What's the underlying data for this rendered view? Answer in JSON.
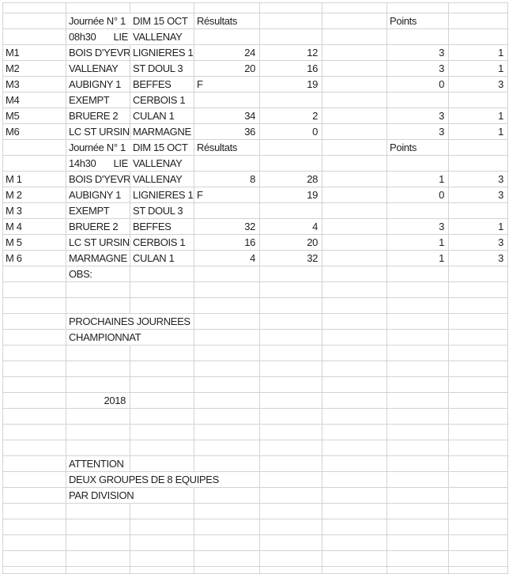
{
  "meta": {
    "app": "spreadsheet-results-sheet",
    "grid_color": "#d3d3d3",
    "text_color": "#1f1f1f",
    "background": "#ffffff"
  },
  "rows": [
    {
      "cells": []
    },
    {
      "cells": [
        {
          "c": 1,
          "v": "Journée N° 1",
          "s": 1
        },
        {
          "c": 2,
          "v": "DIM 15 OCT"
        },
        {
          "c": 3,
          "v": "Résultats"
        },
        {
          "c": 6,
          "v": "Points"
        }
      ]
    },
    {
      "cells": [
        {
          "c": 1,
          "v": "08h30",
          "v2": "LIE",
          "s": 1
        },
        {
          "c": 2,
          "v": "VALLENAY"
        }
      ]
    },
    {
      "cells": [
        {
          "c": 0,
          "v": "M1"
        },
        {
          "c": 1,
          "v": "BOIS D'YEVRI"
        },
        {
          "c": 2,
          "v": "LIGNIERES 1"
        },
        {
          "c": 3,
          "v": "24",
          "a": "r"
        },
        {
          "c": 4,
          "v": "12",
          "a": "r"
        },
        {
          "c": 6,
          "v": "3",
          "a": "r"
        },
        {
          "c": 7,
          "v": "1",
          "a": "r"
        }
      ]
    },
    {
      "cells": [
        {
          "c": 0,
          "v": "M2"
        },
        {
          "c": 1,
          "v": "VALLENAY"
        },
        {
          "c": 2,
          "v": "ST DOUL 3"
        },
        {
          "c": 3,
          "v": "20",
          "a": "r"
        },
        {
          "c": 4,
          "v": "16",
          "a": "r"
        },
        {
          "c": 6,
          "v": "3",
          "a": "r"
        },
        {
          "c": 7,
          "v": "1",
          "a": "r"
        }
      ]
    },
    {
      "cells": [
        {
          "c": 0,
          "v": "M3"
        },
        {
          "c": 1,
          "v": "AUBIGNY 1"
        },
        {
          "c": 2,
          "v": "BEFFES"
        },
        {
          "c": 3,
          "v": "F"
        },
        {
          "c": 4,
          "v": "19",
          "a": "r"
        },
        {
          "c": 6,
          "v": "0",
          "a": "r"
        },
        {
          "c": 7,
          "v": "3",
          "a": "r"
        }
      ]
    },
    {
      "cells": [
        {
          "c": 0,
          "v": "M4"
        },
        {
          "c": 1,
          "v": "EXEMPT"
        },
        {
          "c": 2,
          "v": "CERBOIS 1"
        }
      ]
    },
    {
      "cells": [
        {
          "c": 0,
          "v": "M5"
        },
        {
          "c": 1,
          "v": "BRUERE 2"
        },
        {
          "c": 2,
          "v": "CULAN 1"
        },
        {
          "c": 3,
          "v": "34",
          "a": "r"
        },
        {
          "c": 4,
          "v": "2",
          "a": "r"
        },
        {
          "c": 6,
          "v": "3",
          "a": "r"
        },
        {
          "c": 7,
          "v": "1",
          "a": "r"
        }
      ]
    },
    {
      "cells": [
        {
          "c": 0,
          "v": "M6"
        },
        {
          "c": 1,
          "v": "LC ST URSIN"
        },
        {
          "c": 2,
          "v": "MARMAGNE"
        },
        {
          "c": 3,
          "v": "36",
          "a": "r"
        },
        {
          "c": 4,
          "v": "0",
          "a": "r"
        },
        {
          "c": 6,
          "v": "3",
          "a": "r"
        },
        {
          "c": 7,
          "v": "1",
          "a": "r"
        }
      ]
    },
    {
      "cells": [
        {
          "c": 1,
          "v": "Journée N° 1",
          "s": 1
        },
        {
          "c": 2,
          "v": "DIM 15 OCT"
        },
        {
          "c": 3,
          "v": "Résultats"
        },
        {
          "c": 6,
          "v": "Points"
        }
      ]
    },
    {
      "cells": [
        {
          "c": 1,
          "v": "14h30",
          "v2": "LIE",
          "s": 1
        },
        {
          "c": 2,
          "v": "VALLENAY"
        }
      ]
    },
    {
      "cells": [
        {
          "c": 0,
          "v": "M 1"
        },
        {
          "c": 1,
          "v": "BOIS D'YEVRI"
        },
        {
          "c": 2,
          "v": "VALLENAY"
        },
        {
          "c": 3,
          "v": "8",
          "a": "r"
        },
        {
          "c": 4,
          "v": "28",
          "a": "r"
        },
        {
          "c": 6,
          "v": "1",
          "a": "r"
        },
        {
          "c": 7,
          "v": "3",
          "a": "r"
        }
      ]
    },
    {
      "cells": [
        {
          "c": 0,
          "v": "M 2"
        },
        {
          "c": 1,
          "v": "AUBIGNY 1"
        },
        {
          "c": 2,
          "v": "LIGNIERES 1"
        },
        {
          "c": 3,
          "v": "F"
        },
        {
          "c": 4,
          "v": "19",
          "a": "r"
        },
        {
          "c": 6,
          "v": "0",
          "a": "r"
        },
        {
          "c": 7,
          "v": "3",
          "a": "r"
        }
      ]
    },
    {
      "cells": [
        {
          "c": 0,
          "v": "M 3"
        },
        {
          "c": 1,
          "v": "EXEMPT"
        },
        {
          "c": 2,
          "v": "ST DOUL 3"
        }
      ]
    },
    {
      "cells": [
        {
          "c": 0,
          "v": "M 4"
        },
        {
          "c": 1,
          "v": "BRUERE 2"
        },
        {
          "c": 2,
          "v": "BEFFES"
        },
        {
          "c": 3,
          "v": "32",
          "a": "r"
        },
        {
          "c": 4,
          "v": "4",
          "a": "r"
        },
        {
          "c": 6,
          "v": "3",
          "a": "r"
        },
        {
          "c": 7,
          "v": "1",
          "a": "r"
        }
      ]
    },
    {
      "cells": [
        {
          "c": 0,
          "v": "M 5"
        },
        {
          "c": 1,
          "v": "LC ST URSIN"
        },
        {
          "c": 2,
          "v": "CERBOIS 1"
        },
        {
          "c": 3,
          "v": "16",
          "a": "r"
        },
        {
          "c": 4,
          "v": "20",
          "a": "r"
        },
        {
          "c": 6,
          "v": "1",
          "a": "r"
        },
        {
          "c": 7,
          "v": "3",
          "a": "r"
        }
      ]
    },
    {
      "cells": [
        {
          "c": 0,
          "v": "M 6"
        },
        {
          "c": 1,
          "v": "MARMAGNE"
        },
        {
          "c": 2,
          "v": "CULAN 1"
        },
        {
          "c": 3,
          "v": "4",
          "a": "r"
        },
        {
          "c": 4,
          "v": "32",
          "a": "r"
        },
        {
          "c": 6,
          "v": "1",
          "a": "r"
        },
        {
          "c": 7,
          "v": "3",
          "a": "r"
        }
      ]
    },
    {
      "cells": [
        {
          "c": 1,
          "v": "OBS:"
        }
      ]
    },
    {
      "cells": []
    },
    {
      "cells": []
    },
    {
      "cells": [
        {
          "c": 1,
          "v": "PROCHAINES JOURNEES",
          "s": 1
        }
      ]
    },
    {
      "cells": [
        {
          "c": 1,
          "v": "CHAMPIONNAT",
          "s": 1
        }
      ]
    },
    {
      "cells": []
    },
    {
      "cells": []
    },
    {
      "cells": []
    },
    {
      "cells": [
        {
          "c": 1,
          "v": "2018",
          "a": "r"
        }
      ]
    },
    {
      "cells": []
    },
    {
      "cells": []
    },
    {
      "cells": []
    },
    {
      "cells": [
        {
          "c": 1,
          "v": "ATTENTION"
        }
      ]
    },
    {
      "cells": [
        {
          "c": 1,
          "v": "DEUX GROUPES DE 8 EQUIPES",
          "s": 2
        }
      ]
    },
    {
      "cells": [
        {
          "c": 1,
          "v": "PAR DIVISION",
          "s": 1
        }
      ]
    },
    {
      "cells": []
    },
    {
      "cells": []
    },
    {
      "cells": []
    },
    {
      "cells": []
    },
    {
      "cells": []
    }
  ]
}
